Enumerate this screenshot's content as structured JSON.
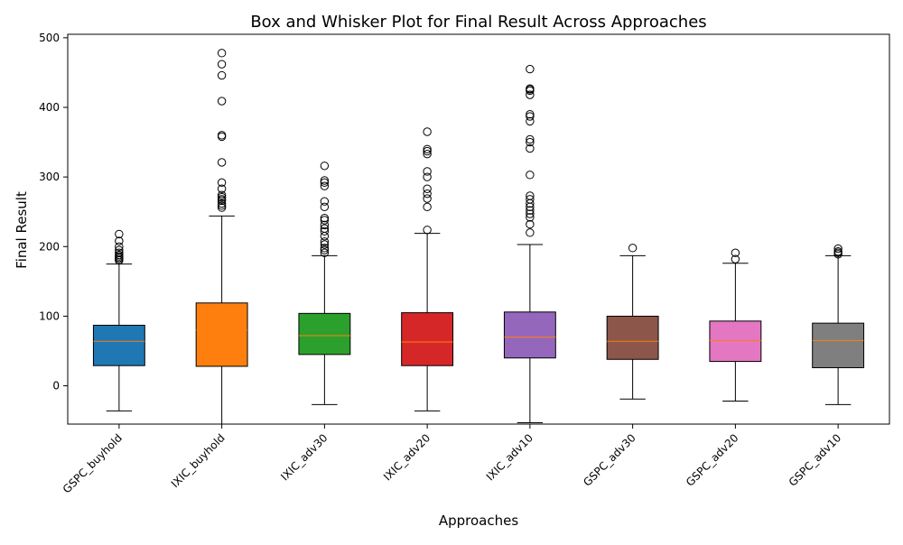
{
  "chart_data": {
    "type": "box",
    "title": "Box and Whisker Plot for Final Result Across Approaches",
    "xlabel": "Approaches",
    "ylabel": "Final Result",
    "ylim": [
      -55,
      505
    ],
    "yticks": [
      0,
      100,
      200,
      300,
      400,
      500
    ],
    "grid": false,
    "legend": "none",
    "median_color": "#ff7f0e",
    "boxes": [
      {
        "label": "GSPC_buyhold",
        "color": "#1f77b4",
        "whisker_low": -36,
        "q1": 29,
        "median": 64,
        "q3": 87,
        "whisker_high": 175,
        "outliers": [
          180,
          182,
          184,
          186,
          188,
          191,
          195,
          200,
          208,
          218
        ]
      },
      {
        "label": "IXIC_buyhold",
        "color": "#ff7f0e",
        "whisker_low": -55,
        "q1": 28,
        "median": 80,
        "q3": 119,
        "whisker_high": 244,
        "outliers": [
          256,
          259,
          262,
          266,
          268,
          271,
          274,
          283,
          292,
          321,
          358,
          360,
          409,
          446,
          462,
          478
        ]
      },
      {
        "label": "IXIC_adv30",
        "color": "#2ca02c",
        "whisker_low": -27,
        "q1": 45,
        "median": 72,
        "q3": 104,
        "whisker_high": 187,
        "outliers": [
          191,
          195,
          198,
          203,
          207,
          215,
          222,
          226,
          231,
          238,
          241,
          257,
          265,
          287,
          292,
          295,
          316
        ]
      },
      {
        "label": "IXIC_adv20",
        "color": "#d62728",
        "whisker_low": -36,
        "q1": 29,
        "median": 63,
        "q3": 105,
        "whisker_high": 219,
        "outliers": [
          224,
          257,
          269,
          276,
          283,
          300,
          308,
          333,
          337,
          340,
          365
        ]
      },
      {
        "label": "IXIC_adv10",
        "color": "#9467bd",
        "whisker_low": -53,
        "q1": 40,
        "median": 70,
        "q3": 106,
        "whisker_high": 203,
        "outliers": [
          220,
          232,
          242,
          247,
          252,
          257,
          262,
          268,
          273,
          303,
          341,
          350,
          354,
          380,
          387,
          390,
          418,
          424,
          426,
          427,
          455
        ]
      },
      {
        "label": "GSPC_adv30",
        "color": "#8c564b",
        "whisker_low": -19,
        "q1": 38,
        "median": 64,
        "q3": 100,
        "whisker_high": 187,
        "outliers": [
          198
        ]
      },
      {
        "label": "GSPC_adv20",
        "color": "#e377c2",
        "whisker_low": -22,
        "q1": 35,
        "median": 65,
        "q3": 93,
        "whisker_high": 176,
        "outliers": [
          182,
          191
        ]
      },
      {
        "label": "GSPC_adv10",
        "color": "#7f7f7f",
        "whisker_low": -27,
        "q1": 26,
        "median": 65,
        "q3": 90,
        "whisker_high": 187,
        "outliers": [
          189,
          191,
          193,
          197
        ]
      }
    ]
  }
}
